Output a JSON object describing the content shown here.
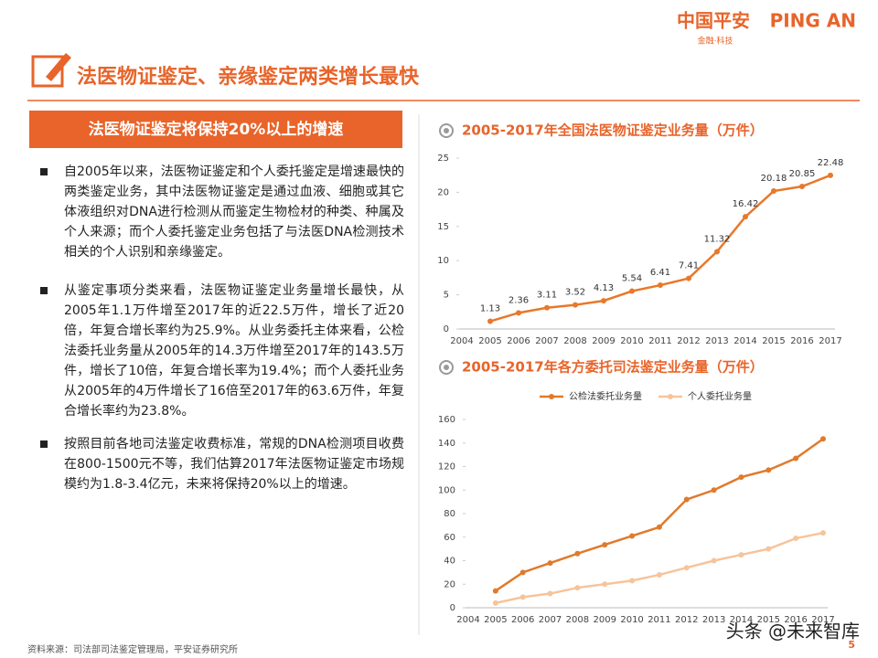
{
  "logo": {
    "cn": "中国平安",
    "en": "PING AN",
    "tagline": "金融·科技"
  },
  "header": {
    "title": "法医物证鉴定、亲缘鉴定两类增长最快"
  },
  "left": {
    "banner": "法医物证鉴定将保持20%以上的增速",
    "bullets": [
      "自2005年以来，法医物证鉴定和个人委托鉴定是增速最快的两类鉴定业务，其中法医物证鉴定是通过血液、细胞或其它体液组织对DNA进行检测从而鉴定生物检材的种类、种属及个人来源；而个人委托鉴定业务包括了与法医DNA检测技术相关的个人识别和亲缘鉴定。",
      "从鉴定事项分类来看，法医物证鉴定业务量增长最快，从2005年1.1万件增至2017年的近22.5万件，增长了近20倍，年复合增长率约为25.9%。从业务委托主体来看，公检法委托业务量从2005年的14.3万件增至2017年的143.5万件，增长了10倍，年复合增长率为19.4%；而个人委托业务从2005年的4万件增长了16倍至2017年的63.6万件，年复合增长率约为23.8%。",
      "按照目前各地司法鉴定收费标准，常规的DNA检测项目收费在800-1500元不等，我们估算2017年法医物证鉴定市场规模约为1.8-3.4亿元，未来将保持20%以上的增速。"
    ]
  },
  "chart_data": [
    {
      "type": "line",
      "title": "2005-2017年全国法医物证鉴定业务量（万件）",
      "categories": [
        "2004",
        "2005",
        "2006",
        "2007",
        "2008",
        "2009",
        "2010",
        "2011",
        "2012",
        "2013",
        "2014",
        "2015",
        "2016",
        "2017"
      ],
      "values": [
        null,
        1.13,
        2.36,
        3.11,
        3.52,
        4.13,
        5.54,
        6.41,
        7.41,
        11.32,
        16.42,
        20.18,
        20.85,
        22.48
      ],
      "color": "#e8782a",
      "ylim": [
        0,
        25
      ],
      "yticks": [
        0,
        5,
        10,
        15,
        20,
        25
      ],
      "grid": false,
      "data_labels": true
    },
    {
      "type": "line",
      "title": "2005-2017年各方委托司法鉴定业务量（万件）",
      "categories": [
        "2004",
        "2005",
        "2006",
        "2007",
        "2008",
        "2009",
        "2010",
        "2011",
        "2012",
        "2013",
        "2014",
        "2015",
        "2016",
        "2017"
      ],
      "series": [
        {
          "name": "公检法委托业务量",
          "color": "#e07a2c",
          "values": [
            null,
            14.3,
            30,
            38,
            46,
            53.5,
            61,
            68.5,
            92,
            100,
            111,
            117,
            127,
            143.5
          ]
        },
        {
          "name": "个人委托业务量",
          "color": "#f6c49c",
          "values": [
            null,
            4,
            9,
            12,
            17,
            20,
            23,
            28,
            34,
            40,
            45,
            50,
            59,
            63.6
          ]
        }
      ],
      "ylim": [
        0,
        160
      ],
      "yticks": [
        0,
        20,
        40,
        60,
        80,
        100,
        120,
        140,
        160
      ],
      "grid": false,
      "legend": "top"
    }
  ],
  "footer": {
    "source": "资料来源：司法部司法鉴定管理局，平安证券研究所",
    "page": "5",
    "watermark": "头条 @未来智库"
  }
}
